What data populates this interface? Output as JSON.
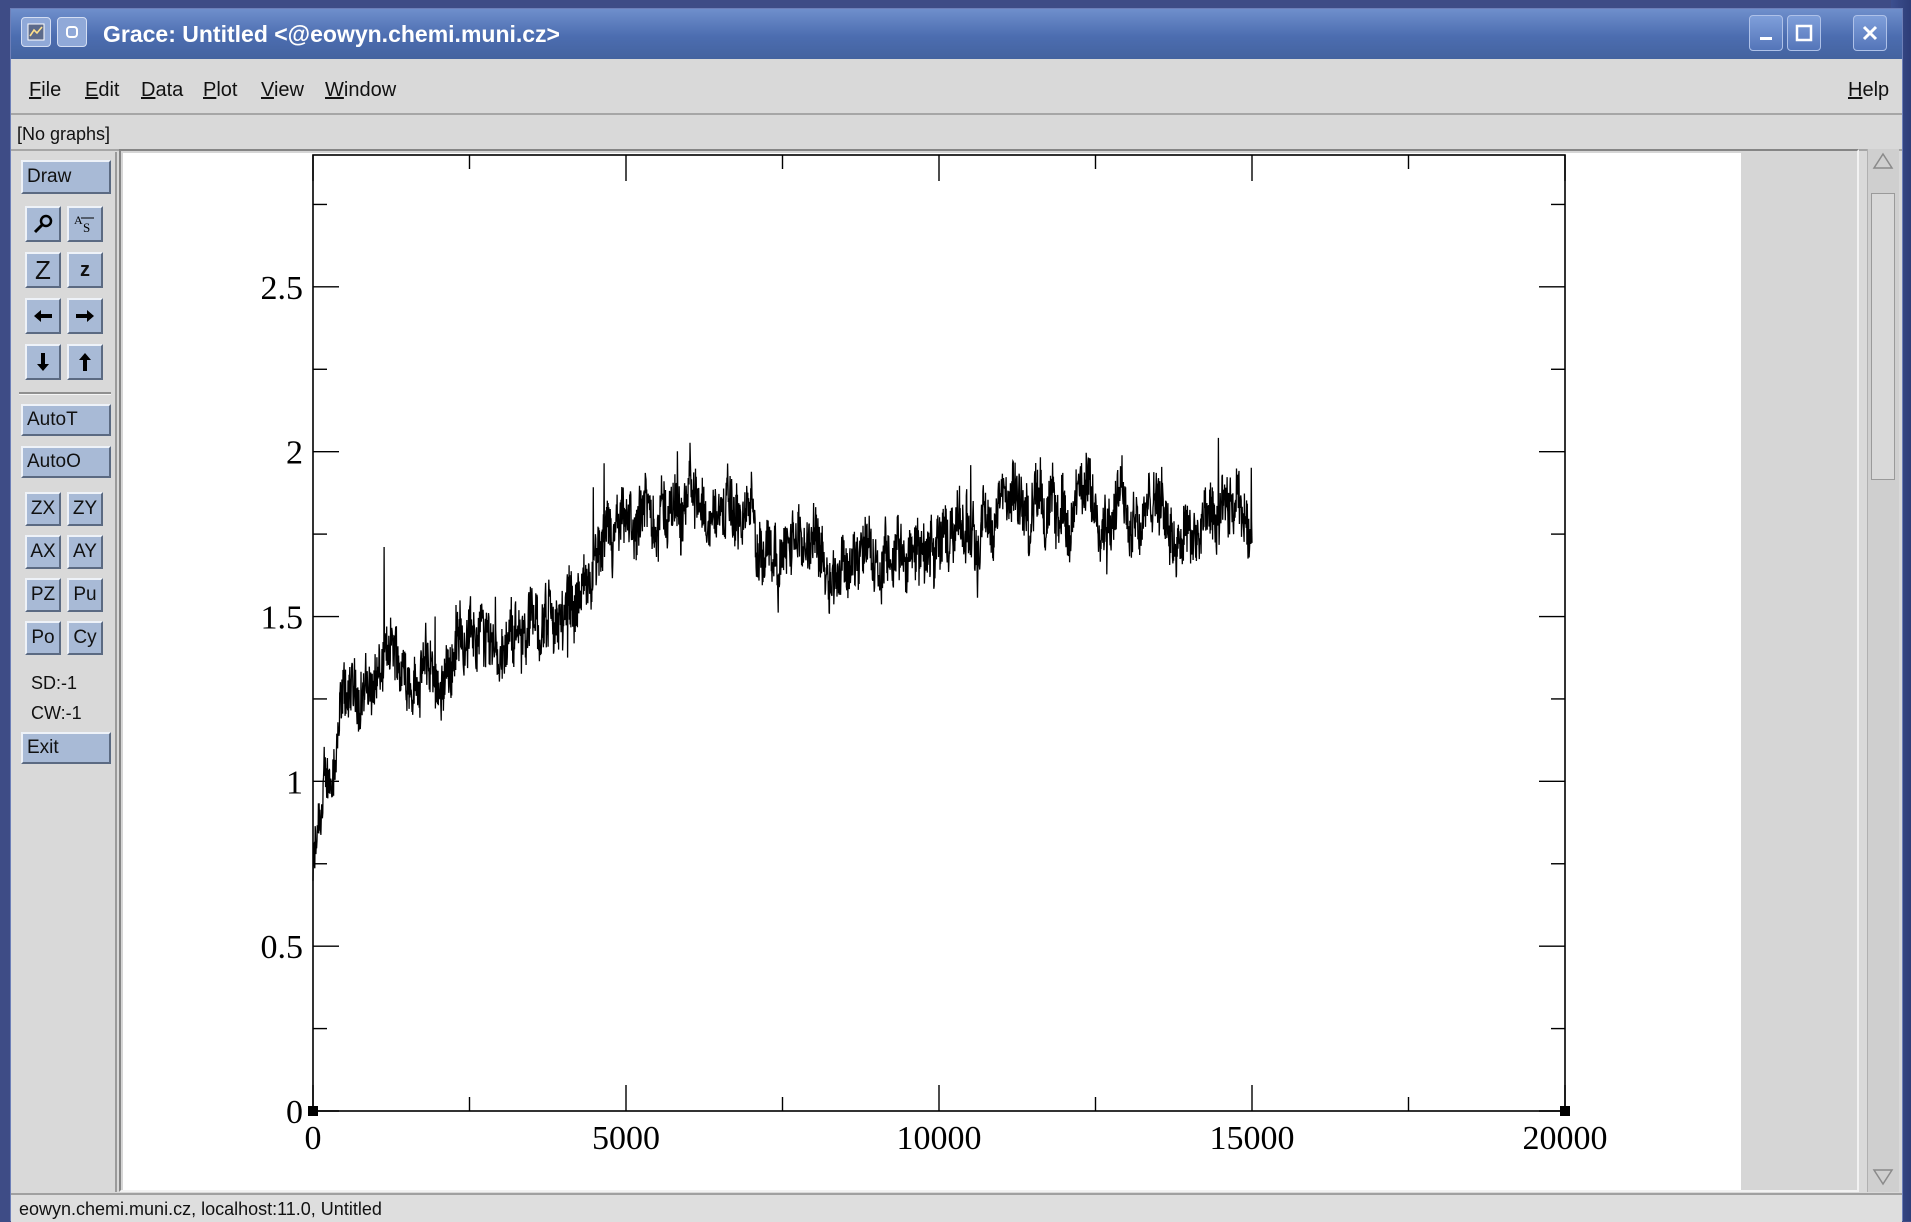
{
  "window": {
    "title": "Grace: Untitled <@eowyn.chemi.muni.cz>"
  },
  "menubar": {
    "items": [
      {
        "label": "File",
        "key": "F",
        "rest": "ile"
      },
      {
        "label": "Edit",
        "key": "E",
        "rest": "dit"
      },
      {
        "label": "Data",
        "key": "D",
        "rest": "ata"
      },
      {
        "label": "Plot",
        "key": "P",
        "rest": "lot"
      },
      {
        "label": "View",
        "key": "V",
        "rest": "iew"
      },
      {
        "label": "Window",
        "key": "W",
        "rest": "indow"
      }
    ],
    "help": {
      "label": "Help",
      "key": "H",
      "rest": "elp"
    }
  },
  "status_line": "[No graphs]",
  "toolbar": {
    "draw": "Draw",
    "zoom_Z": "Z",
    "zoom_z": "z",
    "autoT": "AutoT",
    "autoO": "AutoO",
    "zx": "ZX",
    "zy": "ZY",
    "ax": "AX",
    "ay": "AY",
    "pz": "PZ",
    "pu": "Pu",
    "po": "Po",
    "cy": "Cy",
    "sd": "SD:-1",
    "cw": "CW:-1",
    "exit": "Exit"
  },
  "footer": "eowyn.chemi.muni.cz, localhost:11.0, Untitled",
  "chart_data": {
    "type": "line",
    "title": "",
    "xlabel": "",
    "ylabel": "",
    "xlim": [
      0,
      20000
    ],
    "ylim": [
      0,
      2.9
    ],
    "x_ticks": [
      "0",
      "5000",
      "10000",
      "15000",
      "20000"
    ],
    "y_ticks": [
      "0",
      "0.5",
      "1",
      "1.5",
      "2",
      "2.5"
    ],
    "series": [
      {
        "color": "#000000",
        "x": [
          0,
          250,
          500,
          750,
          1000,
          1250,
          1500,
          1750,
          2000,
          2500,
          3000,
          3500,
          4000,
          4500,
          5000,
          5500,
          6000,
          6500,
          7000,
          7500,
          8000,
          8500,
          9000,
          9500,
          10000,
          10500,
          11000,
          11500,
          12000,
          12500,
          13000,
          13500,
          14000,
          14500,
          15000
        ],
        "y": [
          0.72,
          1.0,
          1.22,
          1.27,
          1.32,
          1.37,
          1.33,
          1.36,
          1.31,
          1.47,
          1.43,
          1.48,
          1.5,
          1.62,
          1.74,
          1.8,
          1.87,
          1.81,
          1.78,
          1.72,
          1.71,
          1.69,
          1.64,
          1.67,
          1.72,
          1.77,
          1.82,
          1.83,
          1.8,
          1.87,
          1.83,
          1.82,
          1.77,
          1.76,
          1.8
        ]
      }
    ]
  }
}
